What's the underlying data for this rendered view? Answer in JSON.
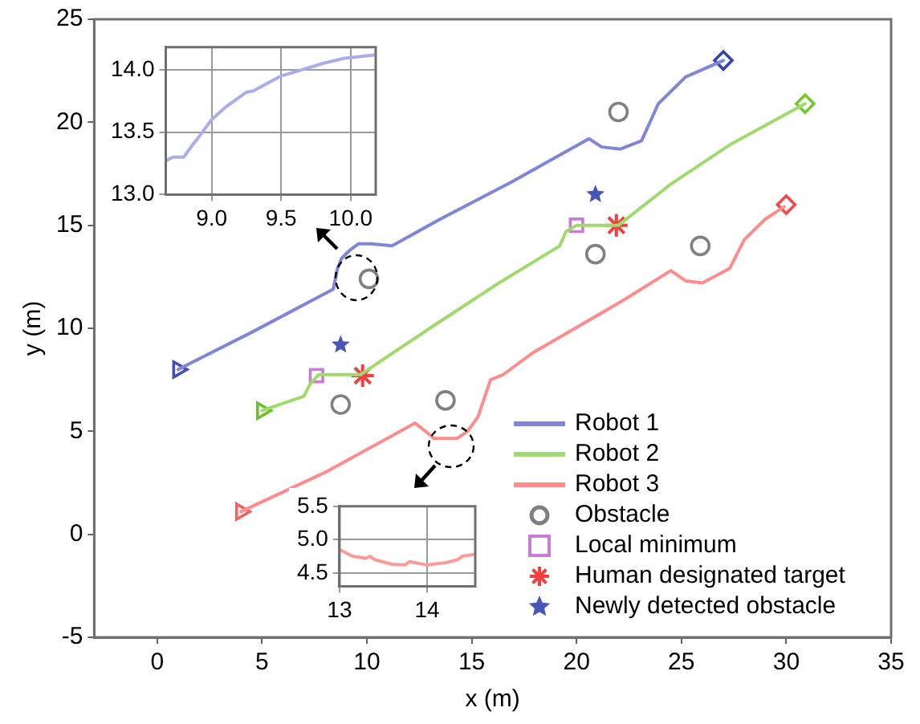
{
  "chart_data": [
    {
      "type": "line",
      "xlabel": "x (m)",
      "ylabel": "y (m)",
      "xlim": [
        -3,
        35
      ],
      "ylim": [
        -5,
        25
      ],
      "xticks": [
        0,
        5,
        10,
        15,
        20,
        25,
        30,
        35
      ],
      "yticks": [
        -5,
        0,
        5,
        10,
        15,
        20,
        25
      ],
      "grid": false,
      "legend": "bottom right",
      "line_style": "solid",
      "series": [
        {
          "name": "Robot 1",
          "color": "#7f86d6",
          "marker": "none",
          "x": [
            1.0,
            4.5,
            8.4,
            8.6,
            8.8,
            9.2,
            9.6,
            10.2,
            11.2,
            13.5,
            16.9,
            20.6,
            21.2,
            22.1,
            23.1,
            23.9,
            25.2,
            27.0
          ],
          "values": [
            8.0,
            9.8,
            11.9,
            12.9,
            13.4,
            13.8,
            14.1,
            14.1,
            14.0,
            15.3,
            17.1,
            19.2,
            18.8,
            18.7,
            19.1,
            20.9,
            22.2,
            23.0
          ]
        },
        {
          "name": "Robot 2",
          "color": "#a0da6c",
          "marker": "none",
          "x": [
            5.0,
            7.0,
            7.3,
            7.7,
            9.7,
            13.0,
            16.3,
            19.2,
            19.5,
            20.0,
            22.0,
            24.5,
            27.3,
            30.9
          ],
          "values": [
            6.0,
            6.7,
            7.3,
            7.75,
            7.75,
            10.0,
            12.2,
            14.0,
            14.7,
            15.0,
            15.0,
            17.0,
            18.9,
            20.9
          ]
        },
        {
          "name": "Robot 3",
          "color": "#ff8c8c",
          "marker": "none",
          "x": [
            4.0,
            8.0,
            12.3,
            12.8,
            13.2,
            14.3,
            14.8,
            15.3,
            15.9,
            16.5,
            17.9,
            22.3,
            24.5,
            25.2,
            26.0,
            27.3,
            28.0,
            29.0,
            29.9
          ],
          "values": [
            1.1,
            3.0,
            5.4,
            5.0,
            4.65,
            4.65,
            5.0,
            5.7,
            7.5,
            7.75,
            8.8,
            11.4,
            12.8,
            12.3,
            12.2,
            12.9,
            14.3,
            15.3,
            15.9
          ]
        },
        {
          "type": "scatter",
          "colors": [
            "#4352b0",
            "#6cbf2a",
            "#f06262"
          ],
          "marker": "triangle",
          "x": [
            1.0,
            5.0,
            4.0
          ],
          "values": [
            8.0,
            6.0,
            1.1
          ]
        },
        {
          "type": "scatter",
          "colors": [
            "#3444a8",
            "#74c82a",
            "#f04848"
          ],
          "marker": "diamond",
          "x": [
            27.0,
            30.9,
            30.0
          ],
          "values": [
            23.0,
            20.9,
            16.0
          ]
        },
        {
          "type": "scatter",
          "name": "Obstacle",
          "color": "#808080",
          "marker": "circle",
          "x": [
            10.1,
            22.0,
            8.75,
            13.75,
            20.9,
            25.9
          ],
          "values": [
            12.4,
            20.5,
            6.3,
            6.5,
            13.6,
            14.0
          ]
        },
        {
          "type": "scatter",
          "name": "Local minimum",
          "color": "#c77dd6",
          "marker": "square",
          "x": [
            7.6,
            20.0
          ],
          "values": [
            7.7,
            15.0
          ]
        },
        {
          "type": "scatter",
          "name": "Human designated target",
          "color": "#f04040",
          "marker": "cross",
          "x": [
            9.8,
            21.9
          ],
          "values": [
            7.7,
            15.0
          ]
        },
        {
          "type": "scatter",
          "name": "Newly detected obstacle",
          "color": "#4a55b8",
          "marker": "star",
          "x": [
            8.75,
            20.9
          ],
          "values": [
            9.2,
            16.5
          ]
        }
      ]
    },
    {
      "type": "line",
      "xlim": [
        8.67,
        10.18
      ],
      "ylim": [
        13,
        14.18
      ],
      "xticks": [
        {
          "value": 9,
          "label": "9.0"
        },
        9.5,
        {
          "value": 10,
          "label": "10.0"
        }
      ],
      "yticks": [
        {
          "value": 13,
          "label": "13.0"
        },
        13.5,
        {
          "value": 14,
          "label": "14.0"
        }
      ],
      "grid": true,
      "series": [
        {
          "color": "#aaaee8",
          "x": [
            8.67,
            8.72,
            8.8,
            8.85,
            8.9,
            9.0,
            9.1,
            9.25,
            9.3,
            9.5,
            9.65,
            9.8,
            9.95,
            10.18
          ],
          "values": [
            13.27,
            13.3,
            13.3,
            13.38,
            13.45,
            13.6,
            13.7,
            13.82,
            13.83,
            13.95,
            14.0,
            14.05,
            14.09,
            14.12
          ]
        }
      ]
    },
    {
      "type": "line",
      "xlim": [
        13,
        14.55
      ],
      "ylim": [
        4.3,
        5.5
      ],
      "xticks": [
        13,
        14
      ],
      "yticks": [
        {
          "value": 4.5,
          "label": "4.5"
        },
        {
          "value": 5,
          "label": "5.0"
        },
        {
          "value": 5.5,
          "label": "5.5"
        }
      ],
      "grid": true,
      "series": [
        {
          "color": "#ff9a9a",
          "x": [
            13.0,
            13.15,
            13.3,
            13.35,
            13.4,
            13.6,
            13.75,
            13.8,
            14.0,
            14.2,
            14.35,
            14.4,
            14.55
          ],
          "values": [
            4.85,
            4.75,
            4.72,
            4.75,
            4.7,
            4.63,
            4.62,
            4.67,
            4.62,
            4.65,
            4.7,
            4.75,
            4.78
          ]
        }
      ]
    }
  ]
}
